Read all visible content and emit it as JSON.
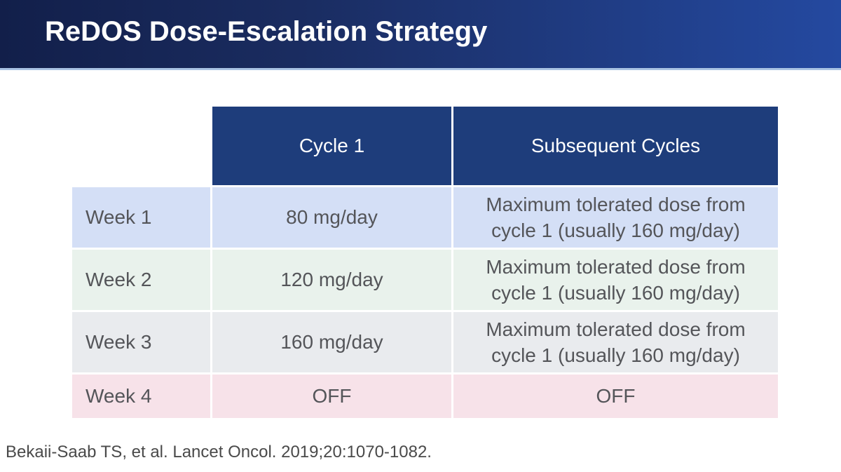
{
  "slide": {
    "title": "ReDOS Dose-Escalation Strategy",
    "citation": "Bekaii-Saab TS, et al. Lancet Oncol. 2019;20:1070-1082."
  },
  "table": {
    "columns": [
      "",
      "Cycle 1",
      "Subsequent Cycles"
    ],
    "rows": [
      {
        "label": "Week 1",
        "cycle1": "80 mg/day",
        "subsequent": "Maximum tolerated dose from cycle 1 (usually 160 mg/day)",
        "color": "#d4dff6"
      },
      {
        "label": "Week 2",
        "cycle1": "120 mg/day",
        "subsequent": "Maximum tolerated dose from cycle 1 (usually 160 mg/day)",
        "color": "#e9f2ec"
      },
      {
        "label": "Week 3",
        "cycle1": "160 mg/day",
        "subsequent": "Maximum tolerated dose from cycle 1 (usually 160 mg/day)",
        "color": "#e9ebee"
      },
      {
        "label": "Week 4",
        "cycle1": "OFF",
        "subsequent": "OFF",
        "color": "#f7e2e9"
      }
    ]
  },
  "colors": {
    "header_gradient_left": "#121f4a",
    "header_gradient_right": "#2449a0",
    "header_underline": "#a9c3e3",
    "table_header_bg": "#1e3d7b",
    "table_header_text": "#ffffff",
    "cell_text": "#545559",
    "citation_text": "#4a4a4a"
  }
}
